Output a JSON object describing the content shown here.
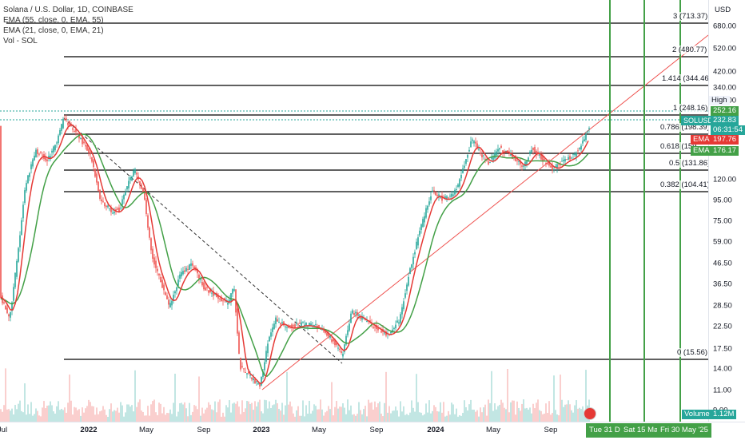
{
  "legend": {
    "title": "Solana / U.S. Dollar, 1D, COINBASE",
    "ema55": "EMA (55, close, 0, EMA, 55)",
    "ema21": "EMA (21, close, 0, EMA, 21)",
    "vol": "Vol - SOL"
  },
  "currency": "USD",
  "y_ticks": [
    "680.00",
    "520.00",
    "420.00",
    "340.00",
    "260.00",
    "160.00",
    "120.00",
    "95.00",
    "75.00",
    "59.00",
    "46.50",
    "36.50",
    "28.50",
    "22.50",
    "17.50",
    "14.00",
    "11.00",
    "9.00"
  ],
  "fib_levels": [
    {
      "label": "3 (713.37)"
    },
    {
      "label": "2 (480.77)"
    },
    {
      "label": "1.414 (344.46)"
    },
    {
      "label": "1 (248.16)"
    },
    {
      "label": "0.786 (198.39)"
    },
    {
      "label": "0.618 (159"
    },
    {
      "label": "0.5 (131.86)"
    },
    {
      "label": "0.382 (104.41)"
    },
    {
      "label": "0 (15.56)"
    }
  ],
  "price_tags": {
    "high_label": "High",
    "high_value": "252.16",
    "symbol": "SOLUSD",
    "price": "232.83",
    "countdown": "06:31:54",
    "ema_label": "EMA",
    "ema_red": "197.76",
    "ema_green": "176.17",
    "volume_label": "Volume",
    "volume_value": "1.12M"
  },
  "x_ticks": [
    "Jul",
    "2022",
    "May",
    "Sep",
    "2023",
    "May",
    "Sep",
    "2024",
    "May",
    "Sep"
  ],
  "x_tags": [
    "Tue 31 Dec",
    "Sat 15 Mar",
    "Fri 30 May '25"
  ],
  "colors": {
    "ema_red": "#e53935",
    "ema_green": "#43a047",
    "price_tag": "#26a69a",
    "vertical": "#43a047",
    "trend": "#ef5350"
  }
}
